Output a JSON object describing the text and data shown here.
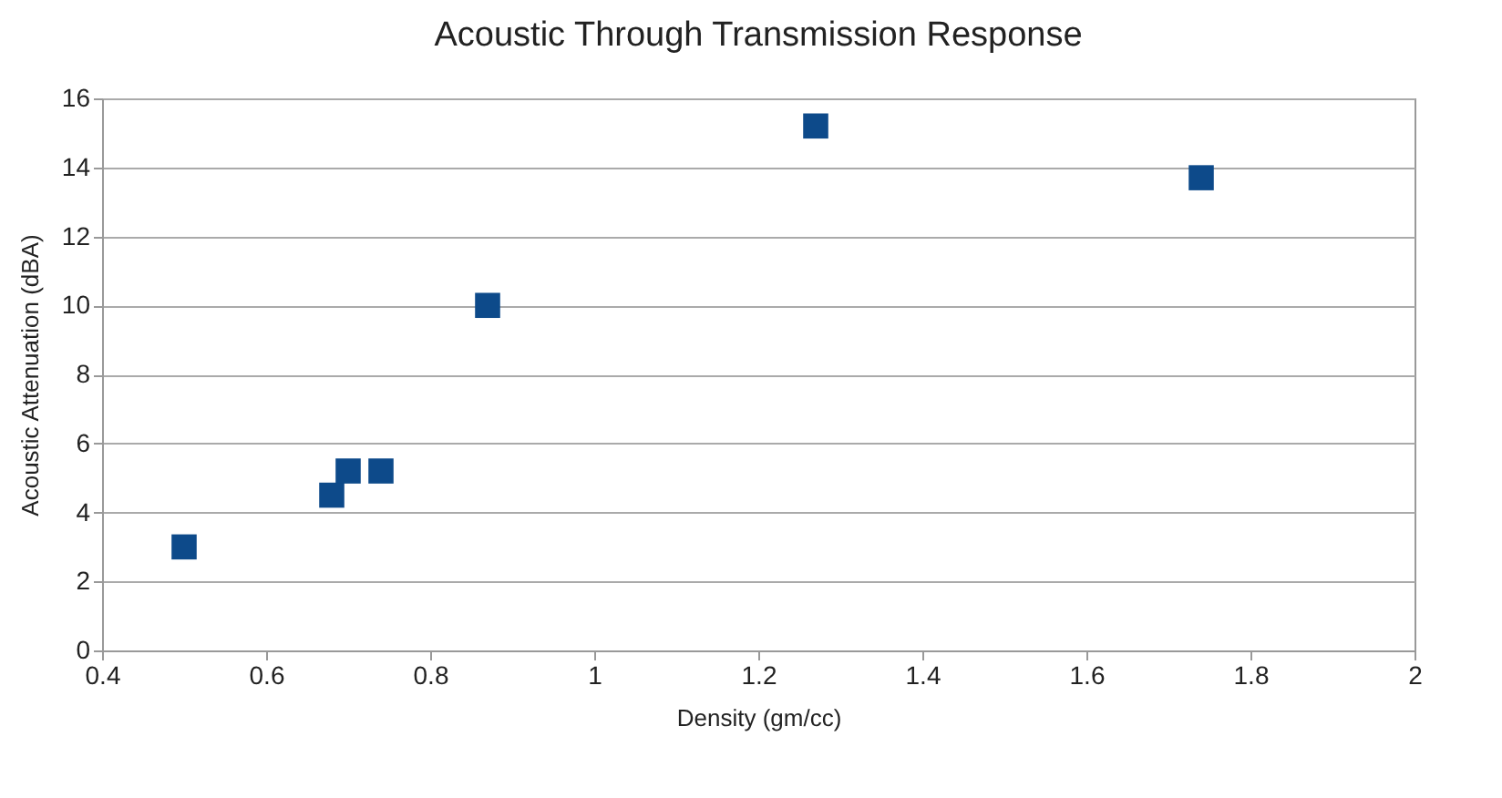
{
  "chart_data": {
    "type": "scatter",
    "title": "Acoustic Through Transmission Response",
    "xlabel": "Density (gm/cc)",
    "ylabel": "Acoustic Attenuation (dBA)",
    "x": [
      0.5,
      0.68,
      0.7,
      0.74,
      0.87,
      1.27,
      1.74
    ],
    "series": [
      {
        "color": "#0d4a8a",
        "values": [
          3.0,
          4.5,
          5.2,
          5.2,
          10.0,
          15.2,
          13.7
        ]
      }
    ],
    "xlim": [
      0.4,
      2
    ],
    "xticks": [
      0.4,
      0.6,
      0.8,
      1,
      1.2,
      1.4,
      1.6,
      1.8,
      2
    ],
    "ylim": [
      0,
      16
    ],
    "yticks": [
      0,
      2,
      4,
      6,
      8,
      10,
      12,
      14,
      16
    ],
    "grid": "y",
    "marker": "square"
  }
}
